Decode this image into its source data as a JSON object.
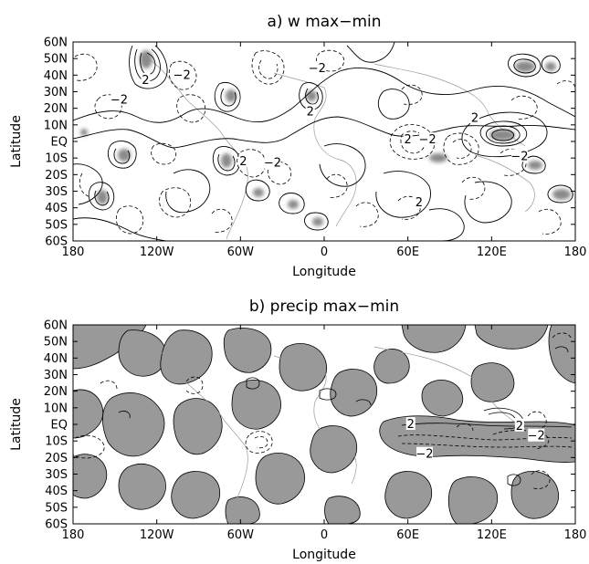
{
  "chart_data": [
    {
      "type": "contour",
      "title": "a) w max−min",
      "xlabel": "Longitude",
      "ylabel": "Latitude",
      "xlim": [
        -180,
        180
      ],
      "ylim": [
        -60,
        60
      ],
      "x_ticks": [
        -180,
        -120,
        -60,
        0,
        60,
        120,
        180
      ],
      "x_tick_labels": [
        "180",
        "120W",
        "60W",
        "0",
        "60E",
        "120E",
        "180"
      ],
      "y_ticks": [
        60,
        50,
        40,
        30,
        20,
        10,
        0,
        -10,
        -20,
        -30,
        -40,
        -50,
        -60
      ],
      "y_tick_labels": [
        "60N",
        "50N",
        "40N",
        "30N",
        "20N",
        "10N",
        "EQ",
        "10S",
        "20S",
        "30S",
        "40S",
        "50S",
        "60S"
      ],
      "contour_labels": [
        {
          "text": "2",
          "lon": -128,
          "lat": 37
        },
        {
          "text": "−2",
          "lon": -102,
          "lat": 40
        },
        {
          "text": "−2",
          "lon": -147,
          "lat": 25
        },
        {
          "text": "−2",
          "lon": -5,
          "lat": 44
        },
        {
          "text": "2",
          "lon": -10,
          "lat": 18
        },
        {
          "text": "2",
          "lon": -58,
          "lat": -12
        },
        {
          "text": "−2",
          "lon": -37,
          "lat": -13
        },
        {
          "text": "2",
          "lon": 60,
          "lat": 1
        },
        {
          "text": "−2",
          "lon": 74,
          "lat": 1
        },
        {
          "text": "2",
          "lon": 108,
          "lat": 14
        },
        {
          "text": "−2",
          "lon": 140,
          "lat": -9
        },
        {
          "text": "2",
          "lon": 68,
          "lat": -37
        }
      ],
      "shading": "values above threshold shaded gray",
      "line_style": "solid = positive, dashed = negative"
    },
    {
      "type": "contour",
      "title": "b) precip max−min",
      "xlabel": "Longitude",
      "ylabel": "Latitude",
      "xlim": [
        -180,
        180
      ],
      "ylim": [
        -60,
        60
      ],
      "x_ticks": [
        -180,
        -120,
        -60,
        0,
        60,
        120,
        180
      ],
      "x_tick_labels": [
        "180",
        "120W",
        "60W",
        "0",
        "60E",
        "120E",
        "180"
      ],
      "y_ticks": [
        60,
        50,
        40,
        30,
        20,
        10,
        0,
        -10,
        -20,
        -30,
        -40,
        -50,
        -60
      ],
      "y_tick_labels": [
        "60N",
        "50N",
        "40N",
        "30N",
        "20N",
        "10N",
        "EQ",
        "10S",
        "20S",
        "30S",
        "40S",
        "50S",
        "60S"
      ],
      "contour_labels": [
        {
          "text": "2",
          "lon": 62,
          "lat": 0
        },
        {
          "text": "−2",
          "lon": 72,
          "lat": -18
        },
        {
          "text": "2",
          "lon": 140,
          "lat": -1
        },
        {
          "text": "−2",
          "lon": 152,
          "lat": -7
        }
      ],
      "shading": "positive regions shaded gray",
      "line_style": "solid = positive, dashed = negative"
    }
  ]
}
